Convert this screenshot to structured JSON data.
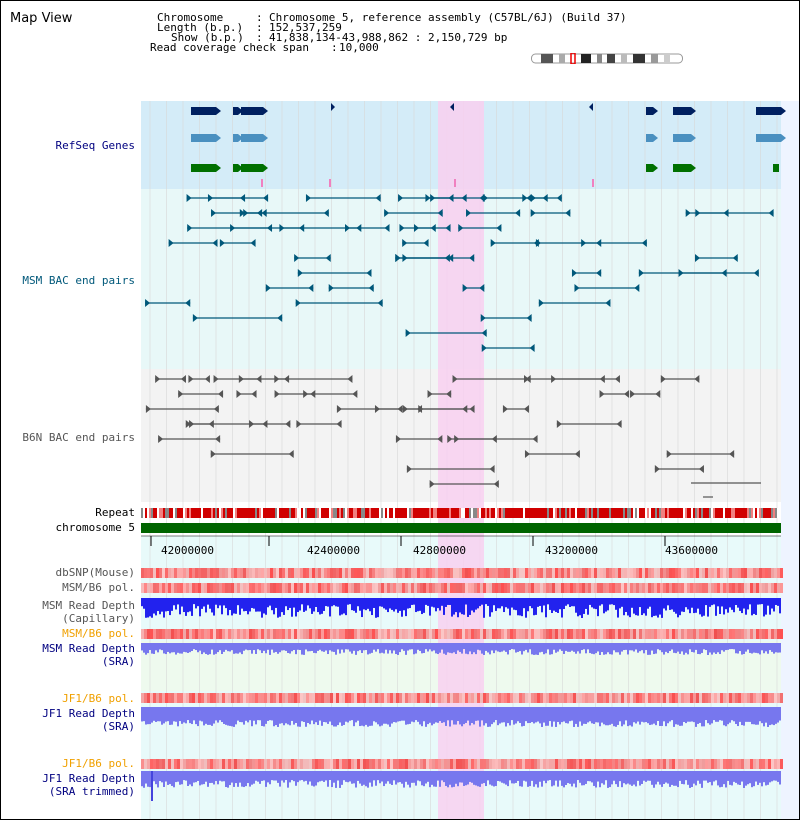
{
  "title": "Map View",
  "header": {
    "chromosome_label": "Chromosome",
    "chromosome_value": "Chromosome 5, reference assembly (C57BL/6J) (Build 37)",
    "length_label": "Length (b.p.)",
    "length_value": "152,537,259",
    "show_label": "Show (b.p.)",
    "show_value": "41,838,134-43,988,862 : 2,150,729 bp",
    "coverage_label": "Read coverage check span",
    "coverage_value": "10,000"
  },
  "tracks": {
    "refseq": "RefSeq Genes",
    "msm_bac": "MSM BAC end pairs",
    "b6n_bac": "B6N BAC end pairs",
    "repeat": "Repeat",
    "chromosome": "chromosome 5",
    "dbsnp": "dbSNP(Mouse)",
    "msm_b6_pol_1": "MSM/B6 pol.",
    "msm_read_depth_cap_1": "MSM Read Depth",
    "msm_read_depth_cap_2": "(Capillary)",
    "msm_b6_pol_2": "MSM/B6 pol.",
    "msm_read_depth_sra_1": "MSM Read Depth",
    "msm_read_depth_sra_2": "(SRA)",
    "jf1_b6_pol_1": "JF1/B6 pol.",
    "jf1_read_depth_sra_1": "JF1 Read Depth",
    "jf1_read_depth_sra_2": "(SRA)",
    "jf1_b6_pol_2": "JF1/B6 pol.",
    "jf1_read_depth_trim_1": "JF1 Read Depth",
    "jf1_read_depth_trim_2": "(SRA trimmed)"
  },
  "axis": {
    "ticks": [
      "42000000",
      "42400000",
      "42800000",
      "43200000",
      "43600000"
    ]
  },
  "colors": {
    "refseq_bg": "#d4ecf8",
    "bac_bg": "#e8f8f8",
    "b6n_bg": "#f3f3f3",
    "highlight": "#f8d0f0",
    "msm_line": "#00587a",
    "b6n_line": "#555555",
    "chromosome_bar": "#006400",
    "depth_blue": "#2222ee",
    "depth_lightblue": "#7777ee"
  }
}
